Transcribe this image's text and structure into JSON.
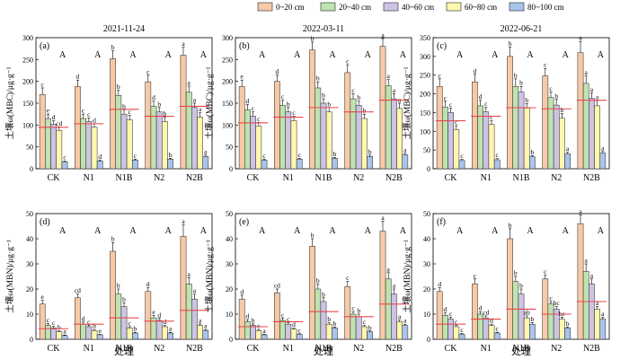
{
  "legend": [
    {
      "label": "0~20 cm",
      "color": "#F6C9A7"
    },
    {
      "label": "20~40 cm",
      "color": "#BFE3B0"
    },
    {
      "label": "40~60 cm",
      "color": "#CDC4E4"
    },
    {
      "label": "60~80 cm",
      "color": "#FFF7AE"
    },
    {
      "label": "80~100 cm",
      "color": "#A9C4EC"
    }
  ],
  "mean_line_color": "#E8474B",
  "dates": [
    "2021-11-24",
    "2022-03-11",
    "2022-06-21"
  ],
  "y_labels": [
    "土壤ω(MBC)/μg·g⁻¹",
    "土壤ω(MBN)/μg·g⁻¹"
  ],
  "x_label": "处理",
  "chart_data": [
    {
      "type": "bar",
      "panel": "(a)",
      "row": 0,
      "col": 0,
      "categories": [
        "CK",
        "N1",
        "N1B",
        "N2",
        "N2B"
      ],
      "ylim": [
        0,
        300
      ],
      "yticks": [
        0,
        50,
        100,
        150,
        200,
        250,
        300
      ],
      "series": [
        {
          "values": [
            170,
            188,
            252,
            199,
            260
          ],
          "err": [
            15,
            15,
            18,
            15,
            18
          ]
        },
        {
          "values": [
            115,
            115,
            168,
            143,
            175
          ],
          "err": [
            10,
            10,
            12,
            12,
            14
          ]
        },
        {
          "values": [
            102,
            108,
            125,
            130,
            140
          ],
          "err": [
            8,
            8,
            10,
            10,
            10
          ]
        },
        {
          "values": [
            88,
            95,
            112,
            108,
            118
          ],
          "err": [
            8,
            8,
            10,
            10,
            10
          ]
        },
        {
          "values": [
            16,
            18,
            20,
            22,
            28
          ],
          "err": [
            2,
            2,
            2,
            2,
            3
          ]
        }
      ],
      "letters": [
        [
          "c",
          "d",
          "b",
          "c",
          "a"
        ],
        [
          "e",
          "c",
          "b",
          "d",
          "a"
        ],
        [
          "d",
          "c",
          "b",
          "b",
          "a"
        ],
        [
          "cd",
          "d",
          "c",
          "b",
          "a"
        ],
        [
          "c",
          "d",
          "c",
          "b",
          "a"
        ]
      ],
      "group_letters": [
        "A",
        "A",
        "A",
        "A",
        "A"
      ],
      "means": [
        95,
        103,
        136,
        120,
        143
      ]
    },
    {
      "type": "bar",
      "panel": "(b)",
      "row": 0,
      "col": 1,
      "categories": [
        "CK",
        "N1",
        "N1B",
        "N2",
        "N2B"
      ],
      "ylim": [
        0,
        300
      ],
      "yticks": [
        0,
        50,
        100,
        150,
        200,
        250,
        300
      ],
      "series": [
        {
          "values": [
            188,
            200,
            272,
            220,
            280
          ],
          "err": [
            15,
            15,
            18,
            18,
            18
          ]
        },
        {
          "values": [
            135,
            145,
            185,
            160,
            190
          ],
          "err": [
            12,
            12,
            14,
            12,
            14
          ]
        },
        {
          "values": [
            120,
            130,
            150,
            145,
            160
          ],
          "err": [
            10,
            10,
            10,
            10,
            12
          ]
        },
        {
          "values": [
            98,
            110,
            130,
            115,
            138
          ],
          "err": [
            8,
            10,
            10,
            10,
            12
          ]
        },
        {
          "values": [
            20,
            22,
            24,
            28,
            32
          ],
          "err": [
            2,
            2,
            2,
            3,
            3
          ]
        }
      ],
      "letters": [
        [
          "e",
          "d",
          "b",
          "c",
          "a"
        ],
        [
          "d",
          "c",
          "b",
          "c",
          "a"
        ],
        [
          "c",
          "b",
          "b",
          "b",
          "a"
        ],
        [
          "c",
          "c",
          "b",
          "b",
          "a"
        ],
        [
          "c",
          "c",
          "b",
          "b",
          "a"
        ]
      ],
      "group_letters": [
        "A",
        "A",
        "A",
        "A",
        "A"
      ],
      "means": [
        105,
        118,
        140,
        130,
        157
      ]
    },
    {
      "type": "bar",
      "panel": "(c)",
      "row": 0,
      "col": 2,
      "categories": [
        "CK",
        "N1",
        "N1B",
        "N2",
        "N2B"
      ],
      "ylim": [
        0,
        350
      ],
      "yticks": [
        0,
        50,
        100,
        150,
        200,
        250,
        300,
        350
      ],
      "series": [
        {
          "values": [
            220,
            232,
            300,
            248,
            310
          ],
          "err": [
            20,
            20,
            25,
            20,
            30
          ]
        },
        {
          "values": [
            165,
            168,
            220,
            190,
            228
          ],
          "err": [
            15,
            15,
            20,
            15,
            20
          ]
        },
        {
          "values": [
            150,
            152,
            205,
            170,
            188
          ],
          "err": [
            12,
            12,
            15,
            15,
            15
          ]
        },
        {
          "values": [
            105,
            118,
            162,
            135,
            168
          ],
          "err": [
            10,
            10,
            12,
            12,
            14
          ]
        },
        {
          "values": [
            22,
            24,
            32,
            40,
            42
          ],
          "err": [
            3,
            3,
            3,
            4,
            4
          ]
        }
      ],
      "letters": [
        [
          "c",
          "d",
          "b",
          "c",
          "a"
        ],
        [
          "c",
          "d",
          "b",
          "c",
          "a"
        ],
        [
          "c",
          "c",
          "b",
          "b",
          "a"
        ],
        [
          "c",
          "c",
          "b",
          "b",
          "a"
        ],
        [
          "c",
          "c",
          "b",
          "a",
          "a"
        ]
      ],
      "group_letters": [
        "A",
        "A",
        "A",
        "A",
        "A"
      ],
      "means": [
        128,
        140,
        163,
        160,
        183
      ]
    },
    {
      "type": "bar",
      "panel": "(d)",
      "row": 1,
      "col": 0,
      "categories": [
        "CK",
        "N1",
        "N1B",
        "N2",
        "N2B"
      ],
      "ylim": [
        0,
        50
      ],
      "yticks": [
        0,
        10,
        20,
        30,
        40,
        50
      ],
      "series": [
        {
          "values": [
            14,
            16.5,
            35,
            19,
            41
          ],
          "err": [
            1.5,
            1.5,
            3.5,
            1.5,
            4.5
          ]
        },
        {
          "values": [
            5.5,
            6,
            18,
            8.5,
            22
          ],
          "err": [
            0.8,
            0.8,
            2,
            1,
            2.5
          ]
        },
        {
          "values": [
            4.5,
            5,
            13,
            7.5,
            16
          ],
          "err": [
            0.6,
            0.6,
            1.5,
            0.8,
            2
          ]
        },
        {
          "values": [
            3,
            3.5,
            4.5,
            5,
            5.5
          ],
          "err": [
            0.4,
            0.4,
            0.5,
            0.5,
            0.6
          ]
        },
        {
          "values": [
            1.5,
            1.8,
            2.5,
            2.5,
            3.5
          ],
          "err": [
            0.2,
            0.2,
            0.3,
            0.3,
            0.4
          ]
        }
      ],
      "letters": [
        [
          "e",
          "cd",
          "b",
          "d",
          "a"
        ],
        [
          "c",
          "d",
          "b",
          "e",
          "a"
        ],
        [
          "c",
          "c",
          "b",
          "d",
          "a"
        ],
        [
          "b",
          "b",
          "c",
          "d",
          "a"
        ],
        [
          "a",
          "e",
          "b",
          "a",
          "a"
        ]
      ],
      "group_letters": [
        "A",
        "A",
        "A",
        "A",
        "A"
      ],
      "means": [
        4.2,
        6,
        8.5,
        7.2,
        11.5
      ]
    },
    {
      "type": "bar",
      "panel": "(e)",
      "row": 1,
      "col": 1,
      "categories": [
        "CK",
        "N1",
        "N1B",
        "N2",
        "N2B"
      ],
      "ylim": [
        0,
        50
      ],
      "yticks": [
        0,
        10,
        20,
        30,
        40,
        50
      ],
      "series": [
        {
          "values": [
            16,
            18.5,
            37,
            21,
            43
          ],
          "err": [
            1.5,
            1.5,
            3,
            2,
            4
          ]
        },
        {
          "values": [
            7,
            7.5,
            20,
            10,
            24
          ],
          "err": [
            0.8,
            0.8,
            2,
            1,
            2.5
          ]
        },
        {
          "values": [
            5.5,
            6,
            15,
            9,
            18
          ],
          "err": [
            0.6,
            0.6,
            1.5,
            1,
            2
          ]
        },
        {
          "values": [
            3.5,
            4,
            6,
            5,
            7
          ],
          "err": [
            0.4,
            0.4,
            0.6,
            0.5,
            0.7
          ]
        },
        {
          "values": [
            1.8,
            2,
            4.5,
            3,
            5.5
          ],
          "err": [
            0.2,
            0.2,
            0.4,
            0.3,
            0.5
          ]
        }
      ],
      "letters": [
        [
          "d",
          "cd",
          "b",
          "c",
          "a"
        ],
        [
          "d",
          "c",
          "b",
          "c",
          "a"
        ],
        [
          "b",
          "c",
          "b",
          "b",
          "a"
        ],
        [
          "e",
          "d",
          "b",
          "c",
          "a"
        ],
        [
          "a",
          "c",
          "b",
          "b",
          "a"
        ]
      ],
      "group_letters": [
        "A",
        "A",
        "A",
        "A",
        "A"
      ],
      "means": [
        5,
        7,
        11,
        9,
        14
      ]
    },
    {
      "type": "bar",
      "panel": "(f)",
      "row": 1,
      "col": 2,
      "categories": [
        "CK",
        "N1",
        "N1B",
        "N2",
        "N2B"
      ],
      "ylim": [
        0,
        50
      ],
      "yticks": [
        0,
        10,
        20,
        30,
        40,
        50
      ],
      "series": [
        {
          "values": [
            19,
            22,
            40,
            24,
            46
          ],
          "err": [
            1.5,
            2,
            4,
            1.5,
            3.5
          ]
        },
        {
          "values": [
            9.5,
            10,
            23,
            14,
            27
          ],
          "err": [
            1,
            1,
            2,
            1,
            3
          ]
        },
        {
          "values": [
            8,
            8.5,
            18,
            12,
            22
          ],
          "err": [
            0.8,
            0.8,
            2,
            1,
            2
          ]
        },
        {
          "values": [
            5,
            5.5,
            8.5,
            8,
            12
          ],
          "err": [
            0.5,
            0.5,
            0.8,
            0.8,
            1
          ]
        },
        {
          "values": [
            2,
            2.5,
            6,
            4.5,
            8
          ],
          "err": [
            0.3,
            0.3,
            0.6,
            0.4,
            0.8
          ]
        }
      ],
      "letters": [
        [
          "d",
          "c",
          "b",
          "c",
          "a"
        ],
        [
          "d",
          "d",
          "b",
          "c",
          "a"
        ],
        [
          "c",
          "cd",
          "b",
          "bc",
          "a"
        ],
        [
          "c",
          "d",
          "ab",
          "bc",
          "a"
        ],
        [
          "c",
          "c",
          "b",
          "b",
          "a"
        ]
      ],
      "group_letters": [
        "A",
        "A",
        "A",
        "A",
        "A"
      ],
      "means": [
        6,
        8,
        12,
        10,
        15
      ]
    }
  ]
}
